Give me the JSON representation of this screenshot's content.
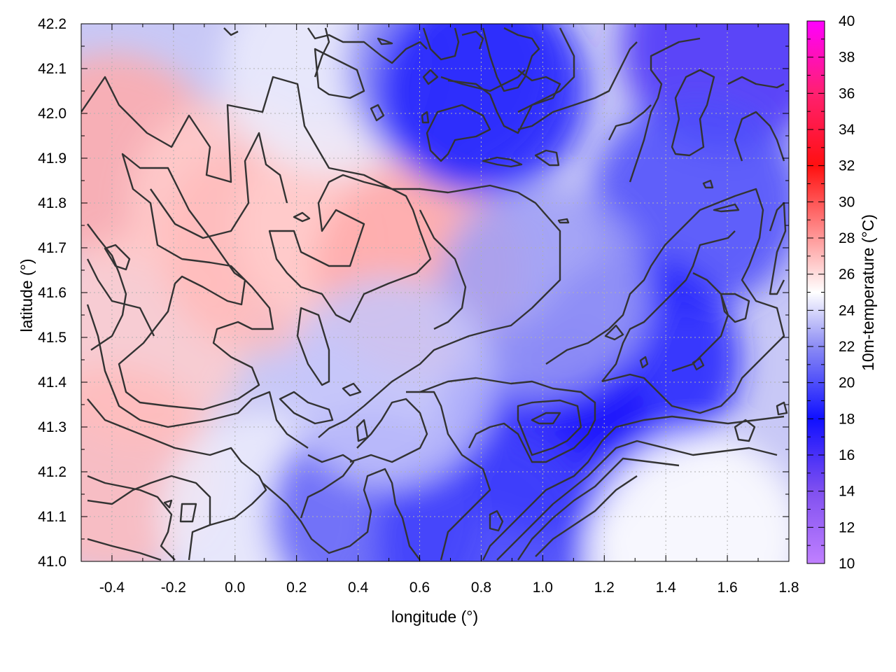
{
  "chart_data": {
    "type": "heatmap",
    "title": "",
    "xlabel": "longitude (°)",
    "ylabel": "latitude (°)",
    "colorbar_label": "10m-temperature (°C)",
    "xlim": [
      -0.5,
      1.8
    ],
    "ylim": [
      41.0,
      42.2
    ],
    "x_ticks": [
      "-0.4",
      "-0.2",
      "0.0",
      "0.2",
      "0.4",
      "0.6",
      "0.8",
      "1.0",
      "1.2",
      "1.4",
      "1.6",
      "1.8"
    ],
    "x_tick_values": [
      -0.4,
      -0.2,
      0.0,
      0.2,
      0.4,
      0.6,
      0.8,
      1.0,
      1.2,
      1.4,
      1.6,
      1.8
    ],
    "y_ticks": [
      "41.0",
      "41.1",
      "41.2",
      "41.3",
      "41.4",
      "41.5",
      "41.6",
      "41.7",
      "41.8",
      "41.9",
      "42.0",
      "42.1",
      "42.2"
    ],
    "y_tick_values": [
      41.0,
      41.1,
      41.2,
      41.3,
      41.4,
      41.5,
      41.6,
      41.7,
      41.8,
      41.9,
      42.0,
      42.1,
      42.2
    ],
    "colorbar_ticks": [
      "10",
      "12",
      "14",
      "16",
      "18",
      "20",
      "22",
      "24",
      "26",
      "28",
      "30",
      "32",
      "34",
      "36",
      "38",
      "40"
    ],
    "colorbar_values": [
      10,
      12,
      14,
      16,
      18,
      20,
      22,
      24,
      26,
      28,
      30,
      32,
      34,
      36,
      38,
      40
    ],
    "colorbar_range": [
      10,
      40
    ],
    "colormap": [
      {
        "value": 10,
        "color": "#c080ff"
      },
      {
        "value": 14,
        "color": "#8050f0"
      },
      {
        "value": 18,
        "color": "#1010ff"
      },
      {
        "value": 22,
        "color": "#8c8cf4"
      },
      {
        "value": 25,
        "color": "#ffffff"
      },
      {
        "value": 28,
        "color": "#ff9999"
      },
      {
        "value": 32,
        "color": "#ff1010"
      },
      {
        "value": 36,
        "color": "#ff2070"
      },
      {
        "value": 40,
        "color": "#ff00ff"
      }
    ],
    "grid": true,
    "contours": true,
    "field_description": "warm region in west (25-28 °C) over low terrain; cooler (16-22 °C) over east and northeast",
    "field_samples": [
      {
        "lon": -0.4,
        "lat": 41.9,
        "t": 27.5
      },
      {
        "lon": -0.3,
        "lat": 41.5,
        "t": 26.5
      },
      {
        "lon": -0.4,
        "lat": 41.2,
        "t": 27.0
      },
      {
        "lon": 0.0,
        "lat": 41.8,
        "t": 26.5
      },
      {
        "lon": 0.1,
        "lat": 41.7,
        "t": 27.0
      },
      {
        "lon": 0.35,
        "lat": 41.75,
        "t": 26.5
      },
      {
        "lon": 0.6,
        "lat": 41.65,
        "t": 27.5
      },
      {
        "lon": 0.1,
        "lat": 41.1,
        "t": 24.5
      },
      {
        "lon": 0.3,
        "lat": 42.1,
        "t": 24.5
      },
      {
        "lon": 0.7,
        "lat": 42.1,
        "t": 21.5
      },
      {
        "lon": 0.8,
        "lat": 42.05,
        "t": 18.5
      },
      {
        "lon": 1.6,
        "lat": 42.15,
        "t": 16.0
      },
      {
        "lon": 1.5,
        "lat": 41.8,
        "t": 20.0
      },
      {
        "lon": 1.3,
        "lat": 41.45,
        "t": 18.5
      },
      {
        "lon": 1.0,
        "lat": 41.3,
        "t": 17.5
      },
      {
        "lon": 0.45,
        "lat": 41.1,
        "t": 20.5
      },
      {
        "lon": 0.8,
        "lat": 41.05,
        "t": 19.5
      },
      {
        "lon": 1.5,
        "lat": 41.05,
        "t": 25.0
      },
      {
        "lon": 1.0,
        "lat": 41.6,
        "t": 22.5
      },
      {
        "lon": 0.5,
        "lat": 41.4,
        "t": 23.5
      }
    ]
  }
}
